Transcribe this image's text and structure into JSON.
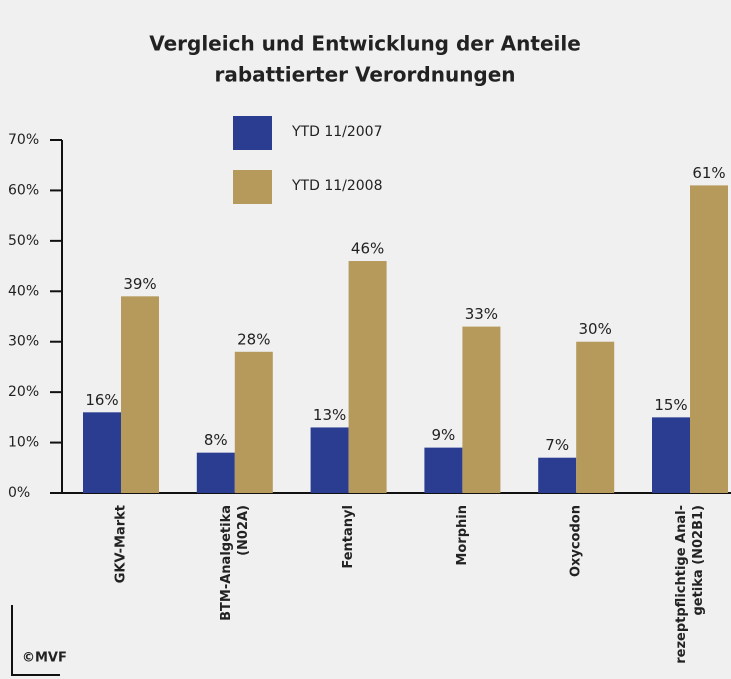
{
  "chart_data": {
    "type": "bar",
    "title": [
      "Vergleich und Entwicklung der Anteile",
      "rabattierter Verordnungen"
    ],
    "categories": [
      [
        "GKV-Markt"
      ],
      [
        "BTM-Analgetika",
        "(N02A)"
      ],
      [
        "Fentanyl"
      ],
      [
        "Morphin"
      ],
      [
        "Oxycodon"
      ],
      [
        "rezeptpflichtige Anal-",
        "getika (N02B1)"
      ]
    ],
    "series": [
      {
        "name": "YTD 11/2007",
        "color": "#2b3d91",
        "values": [
          16,
          8,
          13,
          9,
          7,
          15
        ],
        "value_labels": [
          "16%",
          "8%",
          "13%",
          "9%",
          "7%",
          "15%"
        ]
      },
      {
        "name": "YTD 11/2008",
        "color": "#b59a5c",
        "values": [
          39,
          28,
          46,
          33,
          30,
          61
        ],
        "value_labels": [
          "39%",
          "28%",
          "46%",
          "33%",
          "30%",
          "61%"
        ]
      }
    ],
    "ylim": [
      0,
      70
    ],
    "yticks": [
      {
        "value": 0,
        "label": "0%"
      },
      {
        "value": 10,
        "label": "10%"
      },
      {
        "value": 20,
        "label": "20%"
      },
      {
        "value": 30,
        "label": "30%"
      },
      {
        "value": 40,
        "label": "40%"
      },
      {
        "value": 50,
        "label": "50%"
      },
      {
        "value": 60,
        "label": "60%"
      },
      {
        "value": 70,
        "label": "70%"
      }
    ],
    "copyright": "©MVF"
  }
}
